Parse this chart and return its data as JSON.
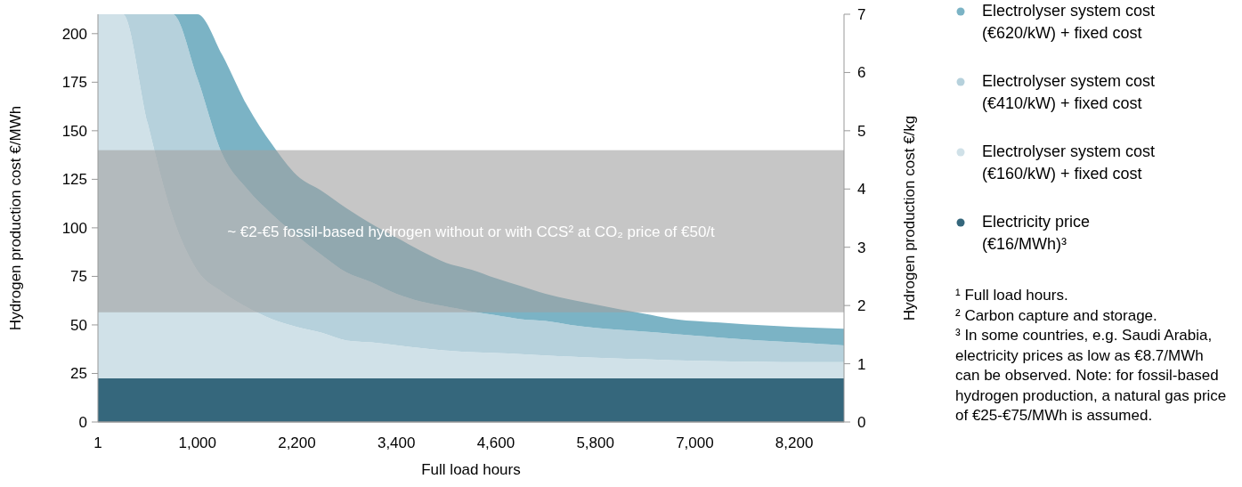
{
  "chart_data": {
    "type": "area",
    "stacked": true,
    "categories": [
      "1",
      null,
      null,
      null,
      "1,000",
      null,
      null,
      null,
      "2,200",
      null,
      null,
      null,
      "3,400",
      null,
      null,
      null,
      "4,600",
      null,
      null,
      null,
      "5,800",
      null,
      null,
      null,
      "7,000",
      null,
      null,
      null,
      "8,200",
      null,
      null
    ],
    "series": [
      {
        "name": "Electricity price (€16/MWh)³",
        "color": "#35677c",
        "values": [
          22.5,
          22.5,
          22.5,
          22.5,
          22.5,
          22.5,
          22.5,
          22.5,
          22.5,
          22.5,
          22.5,
          22.5,
          22.5,
          22.5,
          22.5,
          22.5,
          22.5,
          22.5,
          22.5,
          22.5,
          22.5,
          22.5,
          22.5,
          22.5,
          22.5,
          22.5,
          22.5,
          22.5,
          22.5,
          22.5,
          22.5
        ]
      },
      {
        "name": "Electrolyser system cost (€160/kW) + fixed cost",
        "color": "#d0e1e8",
        "values": [
          187.5,
          187.5,
          131.5,
          83.5,
          55.5,
          44.5,
          36.5,
          30.5,
          26.5,
          23.5,
          19.5,
          18.5,
          17,
          15.5,
          14.3,
          13.5,
          13,
          12.5,
          11.8,
          11.2,
          10.6,
          10.2,
          9.8,
          9.4,
          9,
          8.8,
          8.6,
          8.5,
          8.3,
          8.3,
          8.3
        ]
      },
      {
        "name": "Electrolyser system cost (€410/kW) + fixed cost",
        "color": "#b6d1dc",
        "values": [
          0,
          0,
          56,
          104,
          99,
          71,
          61,
          54,
          47,
          40,
          35,
          31,
          26.5,
          24,
          22.7,
          21,
          19.5,
          18,
          17.7,
          16.3,
          15.4,
          14.8,
          14.2,
          13.6,
          13,
          12.2,
          11.4,
          10.7,
          10.2,
          9.4,
          8.6
        ]
      },
      {
        "name": "Electrolyser system cost (€620/kW) + fixed cost",
        "color": "#7bb3c5",
        "values": [
          0,
          0,
          0,
          0,
          33,
          51,
          43,
          36,
          31,
          33,
          33,
          30,
          29,
          26,
          22.5,
          21.5,
          19,
          17,
          14,
          13,
          12,
          10.5,
          9.2,
          7.8,
          7.5,
          7.7,
          7.8,
          7.9,
          8,
          8.3,
          8.6
        ]
      }
    ],
    "xlabel": "Full load hours",
    "ylabel": "Hydrogen production cost €/MWh",
    "y2label": "Hydrogen production cost €/kg",
    "ylim": [
      0,
      210
    ],
    "yticks": [
      0,
      25,
      50,
      75,
      100,
      125,
      150,
      175,
      200
    ],
    "y2lim": [
      0,
      7
    ],
    "y2ticks": [
      0,
      1,
      2,
      3,
      4,
      5,
      6,
      7
    ],
    "bands": [
      {
        "axis": "y",
        "from": 56.5,
        "to": 140,
        "label": "~ €2-€5 fossil-based hydrogen without or with CCS² at CO₂ price of €50/t",
        "color": "#a0a0a0"
      }
    ],
    "legend": "right",
    "annotations": [
      "¹ Full load hours.",
      "² Carbon capture and storage.",
      "³ In some countries, e.g. Saudi Arabia, electricity prices as low as €8.7/MWh can be observed. Note: for fossil-based hydrogen production, a natural gas price of €25-€75/MWh is assumed."
    ]
  }
}
